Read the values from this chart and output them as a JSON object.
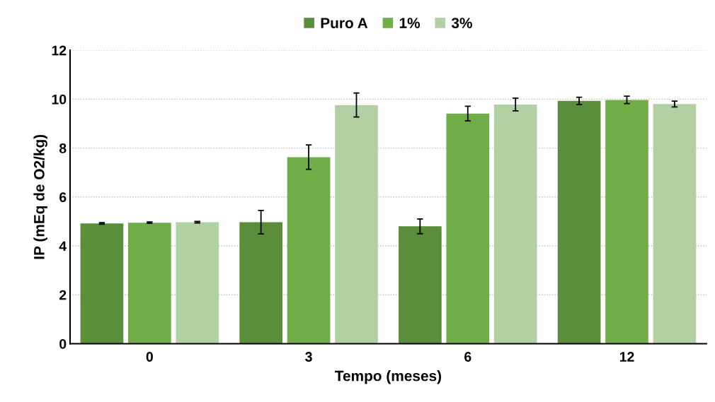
{
  "chart_data": {
    "type": "bar",
    "xlabel": "Tempo (meses)",
    "ylabel": "IP (mEq de O2/kg)",
    "categories": [
      "0",
      "3",
      "6",
      "12"
    ],
    "series": [
      {
        "name": "Puro A",
        "color": "#5b8e3a",
        "values": [
          4.92,
          4.97,
          4.8,
          9.93
        ],
        "errors": [
          0.03,
          0.48,
          0.3,
          0.15
        ]
      },
      {
        "name": "1%",
        "color": "#70ad47",
        "values": [
          4.95,
          7.63,
          9.41,
          9.97
        ],
        "errors": [
          0.03,
          0.5,
          0.3,
          0.15
        ]
      },
      {
        "name": "3%",
        "color": "#b3d0a5",
        "values": [
          4.97,
          9.76,
          9.78,
          9.8
        ],
        "errors": [
          0.03,
          0.49,
          0.26,
          0.12
        ]
      }
    ],
    "ylim": [
      0,
      12
    ],
    "yticks": [
      0,
      2,
      4,
      6,
      8,
      10,
      12
    ],
    "grid": "y",
    "legend": "top"
  }
}
